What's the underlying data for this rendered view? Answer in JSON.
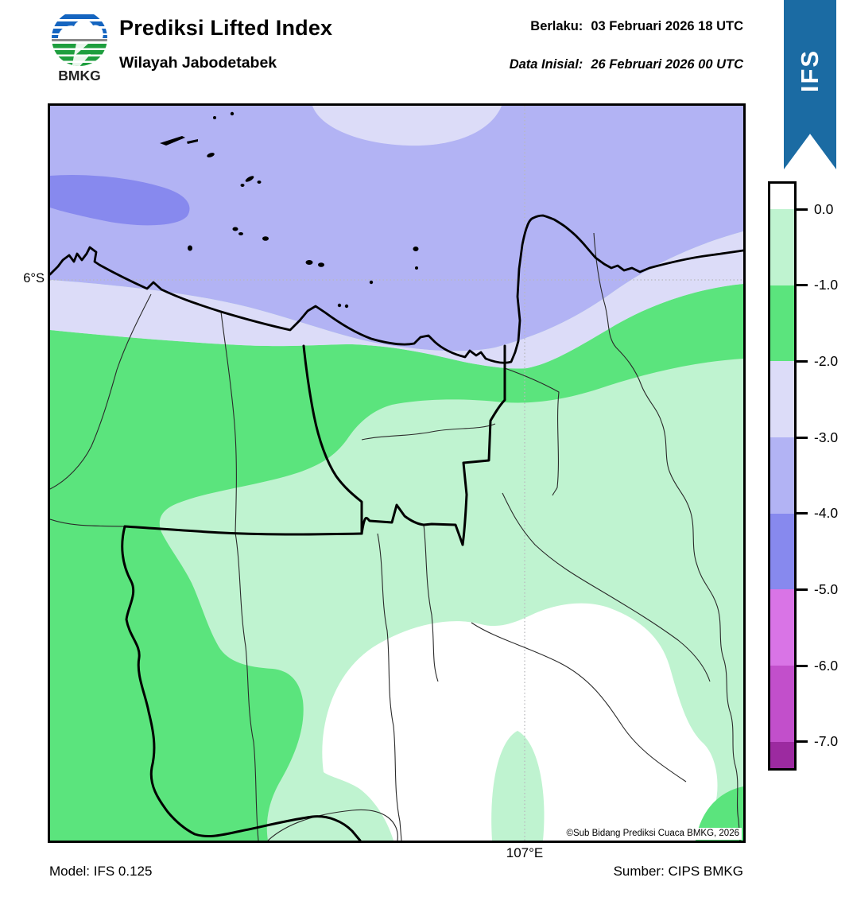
{
  "header": {
    "logo_text": "BMKG",
    "title": "Prediksi Lifted Index",
    "subtitle": "Wilayah Jabodetabek",
    "valid": {
      "label": "Berlaku:",
      "value": "03 Februari 2026 18 UTC"
    },
    "initial": {
      "label": "Data Inisial:",
      "value": "26 Februari 2026 00 UTC"
    },
    "ribbon_label": "IFS"
  },
  "map": {
    "lat_tick": "6°S",
    "lon_tick": "107°E",
    "copyright": "©Sub Bidang Prediksi Cuaca BMKG, 2026"
  },
  "colorbar": {
    "tick_labels": [
      "0.0",
      "-1.0",
      "-2.0",
      "-3.0",
      "-4.0",
      "-5.0",
      "-6.0",
      "-7.0"
    ],
    "segments": [
      {
        "range": "> 0.0",
        "color": "#ffffff"
      },
      {
        "range": "0.0 to -1.0",
        "color": "#bff3d0"
      },
      {
        "range": "-1.0 to -2.0",
        "color": "#5be47d"
      },
      {
        "range": "-2.0 to -3.0",
        "color": "#dcdcf8"
      },
      {
        "range": "-3.0 to -4.0",
        "color": "#b2b3f4"
      },
      {
        "range": "-4.0 to -5.0",
        "color": "#8789ee"
      },
      {
        "range": "-5.0 to -6.0",
        "color": "#d974e6"
      },
      {
        "range": "-6.0 to -7.0",
        "color": "#c24fcb"
      },
      {
        "range": "< -7.0",
        "color": "#9c2aa0"
      }
    ]
  },
  "footer": {
    "model": "Model: IFS 0.125",
    "source": "Sumber: CIPS BMKG"
  },
  "palette": {
    "ribbon_blue": "#1b6ba3",
    "logo_blue": "#1565c0",
    "logo_green": "#1e9e3e",
    "logo_gray": "#8a8a8a",
    "map_levels": {
      "pos": "#ffffff",
      "m0_1": "#bff3d0",
      "m1_2": "#5be47d",
      "m2_3": "#dcdcf8",
      "m3_4": "#b2b3f4",
      "m4_5": "#8789ee"
    }
  },
  "chart_data": {
    "type": "heatmap",
    "title": "Prediksi Lifted Index",
    "region": "Wilayah Jabodetabek",
    "variable": "Lifted Index",
    "valid_time": "03 Februari 2026 18 UTC",
    "initial_time": "26 Februari 2026 00 UTC",
    "model": "IFS 0.125",
    "source": "CIPS BMKG",
    "legend_position": "right",
    "colorbar_tick_values": [
      0.0,
      -1.0,
      -2.0,
      -3.0,
      -4.0,
      -5.0,
      -6.0,
      -7.0
    ],
    "axis_ticks": {
      "x": [
        "107°E"
      ],
      "y": [
        "6°S"
      ]
    },
    "field_summary": [
      "Sea north of the coastline mostly -3 to -4 (periwinkle)",
      "Small -4 to -5 (blue) pocket at the far northwest edge",
      "-2 to -3 (pale lavender) band along and just south of the coast, plus patch at top center",
      "-1 to -2 (green) band across land south of the coast and down the western side",
      "0 to -1 (pale green) over central Jabodetabek",
      "Positive lifted index (white) over the south-central and southeastern interior"
    ]
  }
}
